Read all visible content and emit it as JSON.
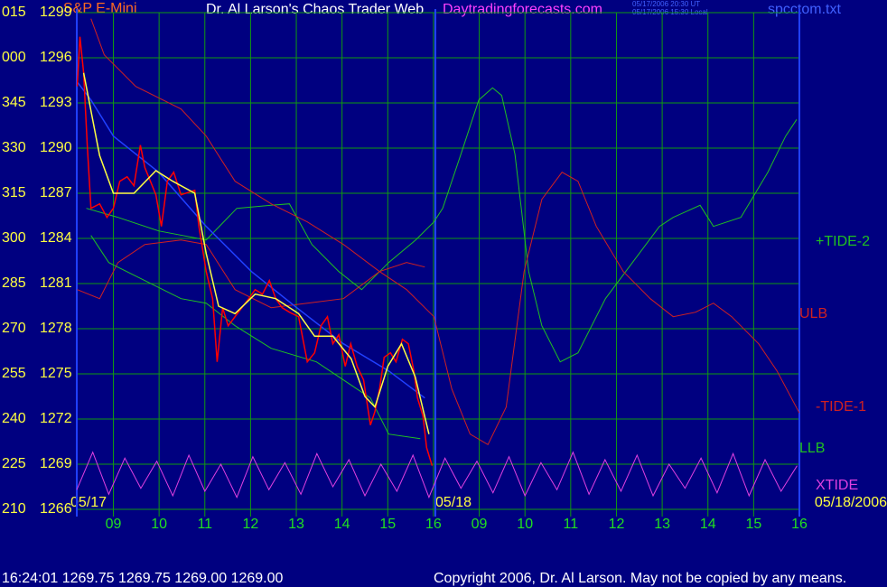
{
  "chart_data": {
    "type": "line",
    "title": "S&P E-Mini",
    "header": "Dr. Al Larson's Chaos Trader Web",
    "site": "Daytradingforecasts.com",
    "timestamps": [
      "05/17/2006 20:30 UT",
      "05/17/2006 15:30 Local"
    ],
    "file": "spcctom.txt",
    "date_labels": [
      "05/17",
      "05/18",
      "05/18/2006"
    ],
    "footer_quote": "16:24:01  1269.75 1269.75 1269.00 1269.00",
    "copyright": "Copyright 2006, Dr. Al Larson. May not be copied by any means.",
    "grid": true,
    "xlim": [
      -0.8,
      15
    ],
    "xticks": [
      {
        "value": 0,
        "label": "09"
      },
      {
        "value": 1,
        "label": "10"
      },
      {
        "value": 2,
        "label": "11"
      },
      {
        "value": 3,
        "label": "12"
      },
      {
        "value": 4,
        "label": "13"
      },
      {
        "value": 5,
        "label": "14"
      },
      {
        "value": 6,
        "label": "15"
      },
      {
        "value": 7,
        "label": "16"
      },
      {
        "value": 8,
        "label": "09"
      },
      {
        "value": 9,
        "label": "10"
      },
      {
        "value": 10,
        "label": "11"
      },
      {
        "value": 11,
        "label": "12"
      },
      {
        "value": 12,
        "label": "13"
      },
      {
        "value": 13,
        "label": "14"
      },
      {
        "value": 14,
        "label": "15"
      },
      {
        "value": 15,
        "label": "16"
      }
    ],
    "ylim": [
      1266,
      1299
    ],
    "yticks": [
      1299,
      1296,
      1293,
      1290,
      1287,
      1284,
      1281,
      1278,
      1275,
      1272,
      1269,
      1266
    ],
    "y_angle_labels": [
      "015",
      "000",
      "345",
      "330",
      "315",
      "300",
      "285",
      "270",
      "255",
      "240",
      "225",
      "210"
    ],
    "series": [
      {
        "name": "+TIDE-2",
        "color": "#20c020",
        "x": [
          -0.59,
          0.1,
          0.99,
          2.03,
          2.7,
          3.45,
          3.85,
          4.34,
          4.93,
          5.43,
          6.02,
          6.61,
          7.01,
          7.2,
          7.6,
          7.99,
          8.29,
          8.49,
          8.78,
          9.08,
          9.37,
          9.77,
          10.16,
          10.76,
          11.35,
          11.94,
          12.24,
          12.83,
          13.12,
          13.72,
          14.31,
          14.7,
          14.94
        ],
        "values": [
          1286.0,
          1285.4,
          1284.5,
          1283.9,
          1286.0,
          1286.2,
          1286.3,
          1283.6,
          1281.8,
          1280.6,
          1282.4,
          1283.9,
          1285.1,
          1286.0,
          1289.6,
          1293.2,
          1294.0,
          1293.5,
          1289.6,
          1281.8,
          1278.2,
          1275.8,
          1276.4,
          1280.0,
          1282.4,
          1284.8,
          1285.4,
          1286.2,
          1284.8,
          1285.4,
          1288.4,
          1290.8,
          1291.9
        ]
      },
      {
        "name": "ULB",
        "color": "#d02020",
        "x": [
          -0.79,
          -0.3,
          0.1,
          0.69,
          1.48,
          2.03,
          2.66,
          3.45,
          4.24,
          5.03,
          5.82,
          6.41,
          6.81
        ],
        "values": [
          1280.6,
          1280.0,
          1282.4,
          1283.6,
          1283.9,
          1283.6,
          1280.6,
          1279.4,
          1279.7,
          1280.0,
          1281.8,
          1282.4,
          1282.1
        ]
      },
      {
        "name": "-TIDE-1",
        "color": "#d02020",
        "x": [
          -0.49,
          -0.2,
          0.49,
          1.48,
          2.03,
          2.66,
          3.45,
          4.24,
          5.03,
          5.82,
          6.41,
          7.01,
          7.4,
          7.8,
          8.19,
          8.59,
          8.98,
          9.37,
          9.81,
          10.16,
          10.56,
          11.15,
          11.74,
          12.24,
          12.73,
          13.12,
          13.52,
          14.11,
          14.51,
          15.0
        ],
        "values": [
          1298.6,
          1296.2,
          1294.1,
          1292.6,
          1290.8,
          1287.8,
          1286.3,
          1285.1,
          1283.6,
          1281.8,
          1280.6,
          1278.8,
          1274.0,
          1271.0,
          1270.3,
          1272.8,
          1281.8,
          1286.6,
          1288.4,
          1287.8,
          1284.8,
          1281.8,
          1280.0,
          1278.8,
          1279.1,
          1279.7,
          1278.8,
          1277.0,
          1275.2,
          1272.4
        ]
      },
      {
        "name": "LLB",
        "color": "#20c020",
        "x": [
          -0.49,
          -0.1,
          0.49,
          1.48,
          2.03,
          2.66,
          3.45,
          4.44,
          5.03,
          5.62,
          6.02,
          6.71
        ],
        "values": [
          1284.2,
          1282.4,
          1281.5,
          1280.0,
          1279.7,
          1278.2,
          1276.7,
          1275.8,
          1274.6,
          1273.4,
          1271.0,
          1270.7
        ]
      },
      {
        "name": "XTIDE",
        "color": "#e040e0",
        "x": [
          -0.8,
          -0.45,
          -0.1,
          0.25,
          0.6,
          0.95,
          1.3,
          1.65,
          2.0,
          2.35,
          2.7,
          3.05,
          3.4,
          3.75,
          4.1,
          4.45,
          4.8,
          5.15,
          5.5,
          5.85,
          6.2,
          6.55,
          6.9,
          7.25,
          7.6,
          7.95,
          8.3,
          8.65,
          9.0,
          9.35,
          9.7,
          10.05,
          10.4,
          10.75,
          11.1,
          11.45,
          11.8,
          12.15,
          12.5,
          12.85,
          13.2,
          13.55,
          13.9,
          14.25,
          14.6,
          14.95
        ],
        "values": [
          1267.3,
          1269.8,
          1267.0,
          1269.4,
          1267.4,
          1269.2,
          1266.9,
          1269.6,
          1267.2,
          1269.0,
          1266.8,
          1269.5,
          1267.3,
          1269.1,
          1267.0,
          1269.7,
          1267.5,
          1269.3,
          1266.9,
          1269.0,
          1267.2,
          1269.6,
          1266.8,
          1269.4,
          1267.4,
          1269.2,
          1267.1,
          1269.5,
          1266.9,
          1269.1,
          1267.3,
          1269.8,
          1267.0,
          1269.3,
          1267.2,
          1269.6,
          1266.9,
          1269.0,
          1267.4,
          1269.4,
          1267.1,
          1269.7,
          1266.9,
          1269.3,
          1267.2,
          1268.9
        ]
      },
      {
        "color": "#2040ff",
        "x": [
          -0.79,
          -0.49,
          0,
          0.99,
          2.03,
          3.02,
          4.01,
          5.03,
          6.02,
          6.81
        ],
        "values": [
          1294.4,
          1293.2,
          1290.8,
          1288.4,
          1284.8,
          1281.8,
          1279.4,
          1277.0,
          1275.2,
          1273.4
        ]
      },
      {
        "color": "#ff0000",
        "x": [
          -0.79,
          -0.73,
          -0.65,
          -0.57,
          -0.49,
          -0.3,
          -0.14,
          0,
          0.14,
          0.3,
          0.45,
          0.59,
          0.69,
          0.93,
          1.05,
          1.18,
          1.32,
          1.48,
          1.78,
          1.87,
          2.03,
          2.17,
          2.27,
          2.39,
          2.51,
          2.66,
          2.96,
          3.1,
          3.26,
          3.41,
          3.55,
          3.69,
          3.85,
          4.05,
          4.24,
          4.4,
          4.54,
          4.68,
          4.8,
          4.93,
          5.07,
          5.19,
          5.33,
          5.47,
          5.62,
          5.72,
          5.82,
          5.92,
          6.06,
          6.18,
          6.32,
          6.45,
          6.57,
          6.65,
          6.77,
          6.85,
          6.97
        ],
        "values": [
          1294.1,
          1297.4,
          1295.0,
          1290.2,
          1286.0,
          1286.3,
          1285.4,
          1286.0,
          1287.8,
          1288.1,
          1287.5,
          1290.2,
          1288.7,
          1286.9,
          1284.8,
          1287.8,
          1288.4,
          1286.9,
          1287.2,
          1284.8,
          1281.8,
          1280.0,
          1275.8,
          1279.4,
          1278.2,
          1278.8,
          1280.0,
          1280.6,
          1280.3,
          1281.2,
          1280.0,
          1279.4,
          1279.1,
          1278.8,
          1275.8,
          1276.4,
          1278.2,
          1278.8,
          1277.0,
          1277.6,
          1275.5,
          1277.0,
          1275.5,
          1274.6,
          1271.6,
          1272.5,
          1274.0,
          1276.1,
          1276.4,
          1275.8,
          1277.3,
          1277.0,
          1275.2,
          1273.4,
          1272.2,
          1270.1,
          1268.9
        ]
      },
      {
        "color": "#ffff40",
        "x": [
          -0.65,
          -0.3,
          0,
          0.45,
          0.93,
          1.3,
          1.78,
          2.03,
          2.3,
          2.66,
          3.1,
          3.55,
          4.05,
          4.4,
          4.8,
          5.2,
          5.5,
          5.72,
          6.0,
          6.3,
          6.6,
          6.9
        ],
        "values": [
          1295.0,
          1289.5,
          1287.0,
          1287.0,
          1288.5,
          1287.8,
          1287.0,
          1283.0,
          1279.5,
          1279.0,
          1280.3,
          1280.0,
          1279.0,
          1277.5,
          1277.5,
          1276.0,
          1273.5,
          1272.8,
          1275.5,
          1277.0,
          1274.8,
          1271.0
        ]
      }
    ]
  }
}
